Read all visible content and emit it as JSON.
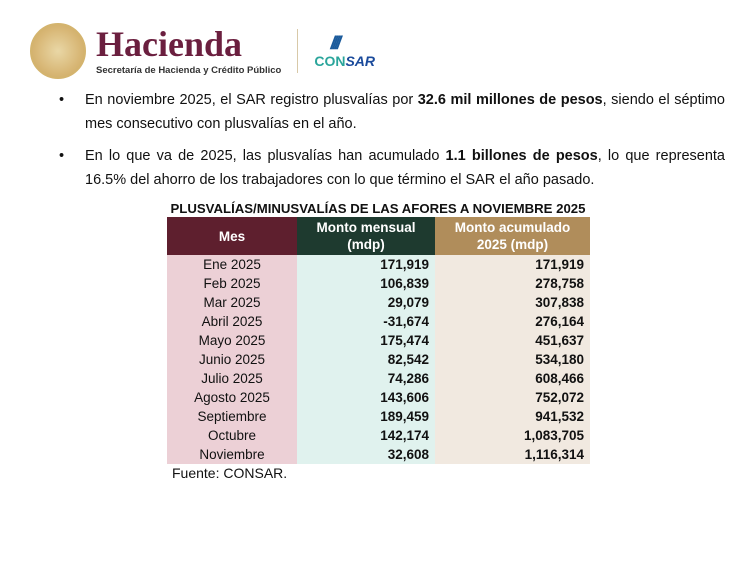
{
  "header": {
    "logo_hacienda": "Hacienda",
    "logo_hacienda_sub": "Secretaría de Hacienda y Crédito Público",
    "logo_consar_a": "CON",
    "logo_consar_b": "SAR"
  },
  "bullets": [
    {
      "pre": "En noviembre 2025, el SAR registro plusvalías por ",
      "bold": "32.6 mil millones de pesos",
      "post": ", siendo el séptimo mes consecutivo con plusvalías en el año."
    },
    {
      "pre": "En lo que va de 2025, las plusvalías han acumulado ",
      "bold": "1.1 billones de pesos",
      "post": ", lo que representa 16.5% del ahorro de los trabajadores con lo que término el SAR el año pasado."
    }
  ],
  "table": {
    "title": "PLUSVALÍAS/MINUSVALÍAS DE LAS AFORES A NOVIEMBRE 2025",
    "headers": [
      "Mes",
      "Monto mensual (mdp)",
      "Monto acumulado 2025 (mdp)"
    ],
    "rows": [
      [
        "Ene 2025",
        "171,919",
        "171,919"
      ],
      [
        "Feb 2025",
        "106,839",
        "278,758"
      ],
      [
        "Mar 2025",
        "29,079",
        "307,838"
      ],
      [
        "Abril 2025",
        "-31,674",
        "276,164"
      ],
      [
        "Mayo 2025",
        "175,474",
        "451,637"
      ],
      [
        "Junio 2025",
        "82,542",
        "534,180"
      ],
      [
        "Julio 2025",
        "74,286",
        "608,466"
      ],
      [
        "Agosto 2025",
        "143,606",
        "752,072"
      ],
      [
        "Septiembre",
        "189,459",
        "941,532"
      ],
      [
        "Octubre",
        "142,174",
        "1,083,705"
      ],
      [
        "Noviembre",
        "32,608",
        "1,116,314"
      ]
    ],
    "source": "Fuente: CONSAR."
  },
  "colors": {
    "mes_header": "#5e1f2e",
    "mensual_header": "#1e3a2f",
    "acumulado_header": "#b08d5b"
  }
}
